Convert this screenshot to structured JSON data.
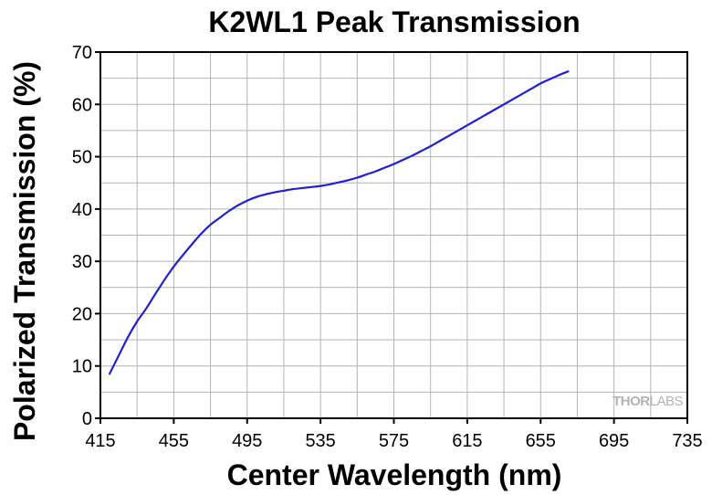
{
  "chart_data": {
    "type": "line",
    "title": "K2WL1 Peak Transmission",
    "xlabel": "Center Wavelength (nm)",
    "ylabel": "Polarized Transmission (%)",
    "xlim": [
      415,
      735
    ],
    "ylim": [
      0,
      70
    ],
    "x_ticks": [
      415,
      455,
      495,
      535,
      575,
      615,
      655,
      695,
      735
    ],
    "y_ticks": [
      0,
      10,
      20,
      30,
      40,
      50,
      60,
      70
    ],
    "grid": true,
    "legend": "none",
    "series": [
      {
        "color": "#1f1fd6",
        "points": [
          [
            420,
            8.5
          ],
          [
            425,
            12.0
          ],
          [
            430,
            15.5
          ],
          [
            435,
            18.5
          ],
          [
            440,
            21.0
          ],
          [
            445,
            23.8
          ],
          [
            450,
            26.5
          ],
          [
            455,
            29.0
          ],
          [
            460,
            31.2
          ],
          [
            465,
            33.3
          ],
          [
            470,
            35.3
          ],
          [
            475,
            37.0
          ],
          [
            480,
            38.3
          ],
          [
            485,
            39.6
          ],
          [
            490,
            40.7
          ],
          [
            495,
            41.6
          ],
          [
            500,
            42.3
          ],
          [
            505,
            42.8
          ],
          [
            510,
            43.2
          ],
          [
            515,
            43.5
          ],
          [
            520,
            43.8
          ],
          [
            525,
            44.0
          ],
          [
            530,
            44.2
          ],
          [
            535,
            44.4
          ],
          [
            540,
            44.7
          ],
          [
            545,
            45.1
          ],
          [
            550,
            45.5
          ],
          [
            555,
            46.0
          ],
          [
            560,
            46.6
          ],
          [
            565,
            47.2
          ],
          [
            570,
            47.9
          ],
          [
            575,
            48.6
          ],
          [
            580,
            49.4
          ],
          [
            585,
            50.2
          ],
          [
            590,
            51.1
          ],
          [
            595,
            52.0
          ],
          [
            600,
            53.0
          ],
          [
            605,
            54.0
          ],
          [
            610,
            55.0
          ],
          [
            615,
            56.0
          ],
          [
            620,
            57.0
          ],
          [
            625,
            58.0
          ],
          [
            630,
            59.0
          ],
          [
            635,
            60.0
          ],
          [
            640,
            61.0
          ],
          [
            645,
            62.0
          ],
          [
            650,
            63.0
          ],
          [
            655,
            64.0
          ],
          [
            660,
            64.8
          ],
          [
            665,
            65.6
          ],
          [
            670,
            66.3
          ]
        ]
      }
    ]
  },
  "watermark": {
    "part1": "THOR",
    "part2": "LABS"
  }
}
